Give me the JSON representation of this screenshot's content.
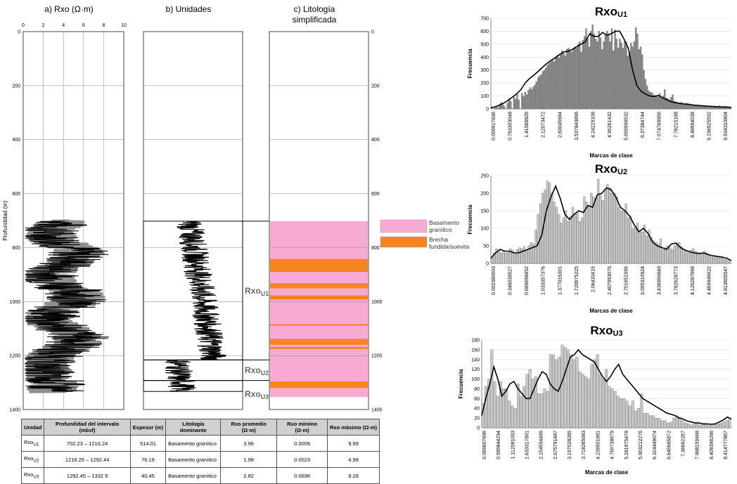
{
  "panel_a": {
    "title": "a) Rxo (Ω·m)",
    "x_ticks": [
      "0",
      "2",
      "4",
      "6",
      "8",
      "10"
    ],
    "ylabel": "Profundidad (m)"
  },
  "panel_b": {
    "title": "b) Unidades"
  },
  "panel_c": {
    "title_line1": "c) Litología",
    "title_line2": "simplificada"
  },
  "depth_ticks": [
    "0",
    "200",
    "400",
    "600",
    "800",
    "1000",
    "1200",
    "1400"
  ],
  "depth_ticks_right": [
    "0",
    "200",
    "400",
    "600",
    "800",
    "1000",
    "1200",
    "1400"
  ],
  "unit_labels": {
    "u1": {
      "main": "Rxo",
      "sub": "U1"
    },
    "u2": {
      "main": "Rxo",
      "sub": "U2"
    },
    "u3": {
      "main": "Rxo",
      "sub": "U3"
    }
  },
  "legend": {
    "granite": {
      "line1": "Basamento",
      "line2": "granítico",
      "color": "#f7abd2"
    },
    "breccia": {
      "line1": "Brecha",
      "line2": "fundida/suevita",
      "color": "#f7841f"
    }
  },
  "lithology": {
    "top": 702.23,
    "bottom": 1332.9,
    "breccia_bands": [
      [
        842,
        890
      ],
      [
        932,
        951
      ],
      [
        977,
        992
      ],
      [
        1084,
        1089
      ],
      [
        1138,
        1160
      ],
      [
        1168,
        1176
      ],
      [
        1296,
        1320
      ]
    ]
  },
  "units": [
    {
      "top": 702.23,
      "bottom": 1216.24
    },
    {
      "top": 1216.25,
      "bottom": 1292.44
    },
    {
      "top": 1292.45,
      "bottom": 1332.9
    }
  ],
  "table": {
    "headers": [
      "Unidad",
      "Profundidad del intervalo (mbsf)",
      "Espesor (m)",
      "Litología dominante",
      "Rxo promedio (Ω·m)",
      "Rxo mínimo (Ω·m)",
      "Rxo máximo (Ω·m)"
    ],
    "rows": [
      {
        "unit": "Rxo",
        "sub": "U1",
        "interval": "702.23 – 1216.24",
        "thickness": "514.01",
        "lith": "Basamento granítico",
        "avg": "3.96",
        "min": "0.0009",
        "max": "9.99"
      },
      {
        "unit": "Rxo",
        "sub": "U2",
        "interval": "1216.25 – 1292.44",
        "thickness": "76.19",
        "lith": "Basamento granítico",
        "avg": "1.98",
        "min": "0.0023",
        "max": "4.98"
      },
      {
        "unit": "Rxo",
        "sub": "U3",
        "interval": "1292.45 – 1332.9",
        "thickness": "40.45",
        "lith": "Basamento granítico",
        "avg": "2.82",
        "min": "0.0696",
        "max": "8.28"
      }
    ]
  },
  "chart_data": [
    {
      "type": "bar",
      "title": "Rxo",
      "title_sub": "U1",
      "xlabel": "Marcas de clase",
      "ylabel": "Frecuencia",
      "ylim": [
        0,
        700
      ],
      "y_ticks": [
        "0",
        "100",
        "200",
        "300",
        "400",
        "500",
        "600",
        "700"
      ],
      "x_tick_labels": [
        "0.009917836",
        "0.783303048",
        "1.41568826",
        "2.12073472",
        "2.83045684",
        "3.537843896",
        "4.24229108",
        "4.95261432",
        "5.659999532",
        "6.37384744",
        "7.074769956",
        "7.78215168",
        "8.48954038",
        "9.196925592",
        "9.934310804"
      ],
      "bar_color": "#8c8c8c",
      "values": [
        12,
        0,
        5,
        22,
        8,
        30,
        50,
        35,
        20,
        0,
        45,
        80,
        60,
        0,
        90,
        75,
        110,
        70,
        0,
        120,
        95,
        130,
        110,
        145,
        165,
        150,
        170,
        185,
        210,
        240,
        255,
        265,
        290,
        300,
        320,
        340,
        355,
        365,
        380,
        365,
        400,
        415,
        395,
        420,
        450,
        430,
        410,
        460,
        470,
        455,
        440,
        465,
        480,
        470,
        500,
        520,
        440,
        530,
        560,
        620,
        540,
        480,
        600,
        650,
        580,
        540,
        520,
        600,
        550,
        460,
        520,
        570,
        600,
        580,
        520,
        620,
        450,
        610,
        540,
        470,
        540,
        510,
        470,
        520,
        520,
        410,
        440,
        510,
        480,
        520,
        630,
        580,
        460,
        480,
        420,
        300,
        230,
        180,
        140,
        130,
        125,
        110,
        105,
        100,
        95,
        120,
        90,
        100,
        150,
        85,
        80,
        70,
        90,
        110,
        60,
        55,
        50,
        45,
        50,
        48,
        40,
        42,
        45,
        40,
        38,
        35,
        35,
        30,
        30,
        28,
        30,
        25,
        25,
        22,
        24,
        20,
        20,
        18,
        20,
        22,
        18,
        15,
        25,
        12,
        10,
        14,
        20,
        15,
        10,
        10
      ],
      "curve": [
        10,
        15,
        30,
        45,
        65,
        90,
        115,
        150,
        200,
        235,
        260,
        290,
        320,
        350,
        375,
        395,
        420,
        440,
        445,
        460,
        480,
        500,
        520,
        580,
        560,
        560,
        590,
        570,
        580,
        600,
        600,
        540,
        470,
        300,
        180,
        135,
        115,
        100,
        95,
        105,
        85,
        70,
        55,
        48,
        42,
        38,
        34,
        30,
        27,
        25,
        22,
        20,
        18,
        16,
        15,
        14,
        12
      ]
    },
    {
      "type": "bar",
      "title": "Rxo",
      "title_sub": "U2",
      "xlabel": "Marcas de clase",
      "ylabel": "Frecuencia",
      "ylim": [
        0,
        250
      ],
      "y_ticks": [
        "0",
        "50",
        "100",
        "150",
        "200",
        "250"
      ],
      "x_tick_labels": [
        "0.002380603",
        "0.346039527",
        "0.689698452",
        "1.033357376",
        "1.377016301",
        "1.720675225",
        "2.06433415",
        "2.407993075",
        "2.751651999",
        "3.095310924",
        "3.438969848",
        "3.782628773",
        "4.126287698",
        "4.469946622",
        "4.813605547"
      ],
      "bar_color": "#c8c8c8",
      "values": [
        18,
        30,
        42,
        38,
        30,
        35,
        30,
        32,
        42,
        38,
        30,
        40,
        45,
        42,
        48,
        38,
        50,
        60,
        55,
        95,
        140,
        170,
        200,
        210,
        235,
        230,
        200,
        175,
        160,
        140,
        115,
        130,
        150,
        120,
        135,
        160,
        140,
        145,
        120,
        130,
        190,
        175,
        165,
        200,
        190,
        185,
        240,
        200,
        180,
        210,
        225,
        215,
        200,
        200,
        190,
        160,
        150,
        150,
        170,
        130,
        135,
        100,
        105,
        115,
        95,
        90,
        110,
        80,
        95,
        75,
        65,
        60,
        55,
        70,
        40,
        45,
        50,
        45,
        40,
        50,
        58,
        60,
        48,
        40,
        35,
        30,
        38,
        42,
        35,
        32,
        30,
        28,
        35,
        30,
        25,
        20,
        22,
        20,
        18,
        20,
        15,
        12,
        10,
        5
      ],
      "curve": [
        15,
        30,
        40,
        35,
        35,
        30,
        30,
        35,
        40,
        45,
        50,
        80,
        150,
        190,
        220,
        185,
        140,
        125,
        140,
        150,
        145,
        165,
        160,
        195,
        200,
        215,
        210,
        190,
        160,
        150,
        135,
        110,
        90,
        100,
        85,
        60,
        50,
        45,
        40,
        55,
        58,
        45,
        38,
        33,
        30,
        28,
        30,
        25,
        22,
        20,
        18,
        15,
        8
      ]
    },
    {
      "type": "bar",
      "title": "Rxo",
      "title_sub": "U3",
      "xlabel": "Marcas de clase",
      "ylabel": "Frecuencia",
      "ylim": [
        0,
        180
      ],
      "y_ticks": [
        "0",
        "20",
        "40",
        "60",
        "80",
        "100",
        "120",
        "140",
        "160",
        "180"
      ],
      "x_tick_labels": [
        "0.069607896",
        "0.590844294",
        "1.112081093",
        "1.633317891",
        "2.154554489",
        "2.675791487",
        "3.197028285",
        "3.718265083",
        "4.239501881",
        "4.760738679",
        "5.281975478",
        "5.803212276",
        "6.324449074",
        "6.845685872",
        "7.36692267",
        "7.888159468",
        "8.409396266",
        "8.414777867"
      ],
      "bar_color": "#c8c8c8",
      "values": [
        50,
        85,
        100,
        160,
        95,
        65,
        95,
        80,
        80,
        55,
        45,
        40,
        90,
        65,
        85,
        110,
        120,
        100,
        105,
        70,
        70,
        80,
        75,
        150,
        150,
        140,
        145,
        170,
        165,
        160,
        150,
        140,
        145,
        115,
        110,
        105,
        100,
        130,
        140,
        150,
        110,
        100,
        120,
        85,
        80,
        75,
        65,
        60,
        60,
        55,
        45,
        55,
        35,
        40,
        70,
        30,
        30,
        25,
        25,
        20,
        20,
        15,
        15,
        10,
        12,
        20,
        25,
        22,
        15,
        10,
        8,
        6,
        10,
        8,
        6,
        6,
        6,
        5,
        4,
        7,
        8,
        10,
        12,
        15,
        20
      ],
      "curve": [
        25,
        60,
        90,
        125,
        100,
        65,
        75,
        90,
        95,
        80,
        70,
        60,
        60,
        80,
        100,
        115,
        110,
        90,
        80,
        75,
        95,
        120,
        145,
        150,
        160,
        150,
        145,
        140,
        135,
        120,
        105,
        95,
        105,
        120,
        130,
        110,
        100,
        90,
        80,
        70,
        60,
        55,
        50,
        45,
        40,
        35,
        30,
        28,
        25,
        20,
        18,
        14,
        12,
        10,
        10,
        8,
        8,
        7,
        8,
        12,
        16,
        22,
        18
      ]
    }
  ]
}
